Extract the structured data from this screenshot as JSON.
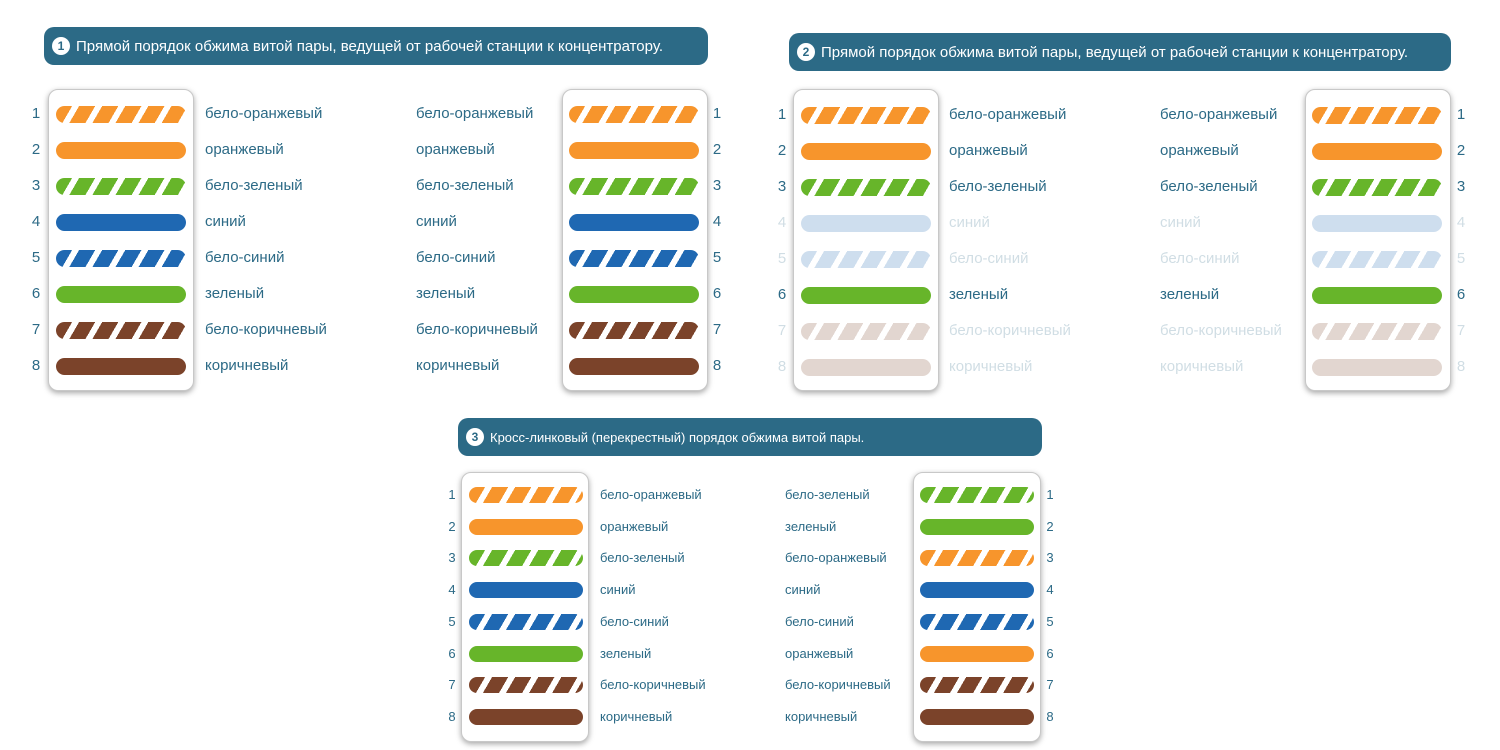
{
  "colors": {
    "banner": "#2c6a86",
    "text": "#2c6a86",
    "orange": "#f7952c",
    "green": "#67b52a",
    "blue": "#1f68b2",
    "brown": "#7b432a",
    "white": "#ffffff"
  },
  "wire_colors": {
    "бело-оранжевый": {
      "base": "orange",
      "striped": true
    },
    "оранжевый": {
      "base": "orange",
      "striped": false
    },
    "бело-зеленый": {
      "base": "green",
      "striped": true
    },
    "зеленый": {
      "base": "green",
      "striped": false
    },
    "бело-синий": {
      "base": "blue",
      "striped": true
    },
    "синий": {
      "base": "blue",
      "striped": false
    },
    "бело-коричневый": {
      "base": "brown",
      "striped": true
    },
    "коричневый": {
      "base": "brown",
      "striped": false
    }
  },
  "diagrams": [
    {
      "number": "1",
      "title": "Прямой порядок обжима витой пары, ведущей от рабочей станции к концентратору.",
      "pins": [
        "1",
        "2",
        "3",
        "4",
        "5",
        "6",
        "7",
        "8"
      ],
      "left": [
        "бело-оранжевый",
        "оранжевый",
        "бело-зеленый",
        "синий",
        "бело-синий",
        "зеленый",
        "бело-коричневый",
        "коричневый"
      ],
      "right": [
        "бело-оранжевый",
        "оранжевый",
        "бело-зеленый",
        "синий",
        "бело-синий",
        "зеленый",
        "бело-коричневый",
        "коричневый"
      ],
      "faded": []
    },
    {
      "number": "2",
      "title": "Прямой порядок обжима витой пары, ведущей от рабочей станции к концентратору.",
      "pins": [
        "1",
        "2",
        "3",
        "4",
        "5",
        "6",
        "7",
        "8"
      ],
      "left": [
        "бело-оранжевый",
        "оранжевый",
        "бело-зеленый",
        "синий",
        "бело-синий",
        "зеленый",
        "бело-коричневый",
        "коричневый"
      ],
      "right": [
        "бело-оранжевый",
        "оранжевый",
        "бело-зеленый",
        "синий",
        "бело-синий",
        "зеленый",
        "бело-коричневый",
        "коричневый"
      ],
      "faded": [
        4,
        5,
        7,
        8
      ]
    },
    {
      "number": "3",
      "title": "Кросс-линковый (перекрестный) порядок обжима витой пары.",
      "pins": [
        "1",
        "2",
        "3",
        "4",
        "5",
        "6",
        "7",
        "8"
      ],
      "left": [
        "бело-оранжевый",
        "оранжевый",
        "бело-зеленый",
        "синий",
        "бело-синий",
        "зеленый",
        "бело-коричневый",
        "коричневый"
      ],
      "right": [
        "бело-зеленый",
        "зеленый",
        "бело-оранжевый",
        "синий",
        "бело-синий",
        "оранжевый",
        "бело-коричневый",
        "коричневый"
      ],
      "faded": []
    }
  ]
}
